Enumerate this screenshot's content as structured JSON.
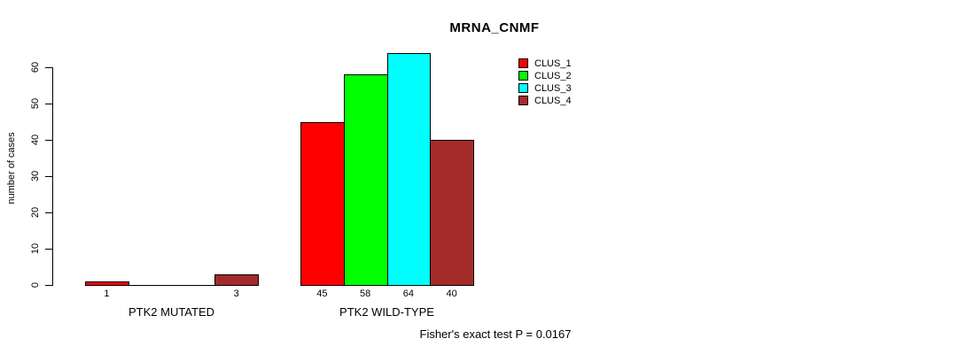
{
  "chart_data": {
    "type": "bar",
    "title": "MRNA_CNMF",
    "ylabel": "number of cases",
    "xlabel": "",
    "ylim": [
      0,
      64
    ],
    "yticks": [
      0,
      10,
      20,
      30,
      40,
      50,
      60
    ],
    "grid": false,
    "legend_position": "top-right",
    "colors": {
      "bar_border": "#000000",
      "axis": "#000000",
      "background": "#ffffff"
    },
    "clusters": [
      {
        "name": "CLUS_1",
        "color": "#FF0000"
      },
      {
        "name": "CLUS_2",
        "color": "#00FF00"
      },
      {
        "name": "CLUS_3",
        "color": "#00FFFF"
      },
      {
        "name": "CLUS_4",
        "color": "#A52A2A"
      }
    ],
    "groups": [
      {
        "label": "PTK2 MUTATED",
        "values": [
          1,
          0,
          0,
          3
        ]
      },
      {
        "label": "PTK2 WILD-TYPE",
        "values": [
          45,
          58,
          64,
          40
        ]
      }
    ],
    "footnote": "Fisher's exact test P = 0.0167"
  }
}
